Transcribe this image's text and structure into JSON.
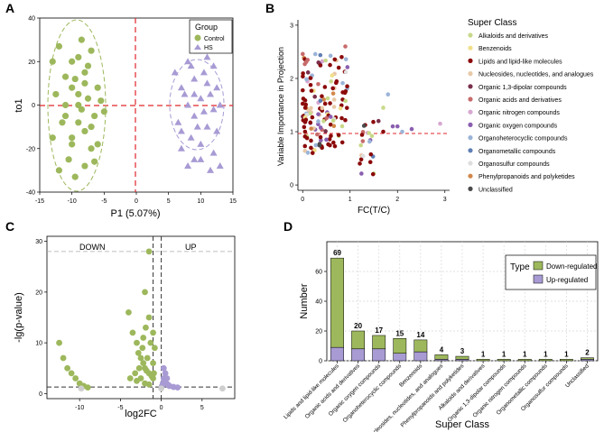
{
  "colors": {
    "green": "#9db85c",
    "purple": "#a89bd4",
    "red_line": "#e0262b",
    "dark_red": "#8b0000",
    "grid": "#d9d9d9"
  },
  "chart_data": [
    {
      "panel": "A",
      "type": "scatter",
      "title": "",
      "xlabel": "P1 (5.07%)",
      "ylabel": "to1",
      "xlim": [
        -15,
        15
      ],
      "ylim": [
        -40,
        40
      ],
      "xticks": [
        -15,
        -10,
        -5,
        0,
        5,
        10,
        15
      ],
      "yticks": [
        -40,
        -20,
        0,
        20,
        40
      ],
      "legend": {
        "title": "Group",
        "entries": [
          "Control",
          "HS"
        ],
        "placement": "top-right"
      },
      "series": [
        {
          "name": "Control",
          "points": [
            [
              -13,
              20
            ],
            [
              -12,
              27
            ],
            [
              -12.5,
              5
            ],
            [
              -11,
              13
            ],
            [
              -11,
              -5
            ],
            [
              -10,
              8
            ],
            [
              -10,
              -15
            ],
            [
              -9,
              22
            ],
            [
              -9,
              0
            ],
            [
              -8.5,
              30
            ],
            [
              -8,
              -12
            ],
            [
              -8,
              10
            ],
            [
              -7.5,
              3
            ],
            [
              -7,
              -20
            ],
            [
              -7,
              25
            ],
            [
              -10.5,
              -25
            ],
            [
              -9.5,
              -33
            ],
            [
              -11.5,
              -8
            ],
            [
              -12,
              -30
            ],
            [
              -6.5,
              -5
            ],
            [
              -6,
              8
            ],
            [
              -6,
              -18
            ],
            [
              -5.5,
              2
            ],
            [
              -8,
              15
            ],
            [
              -9,
              -8
            ],
            [
              -10,
              20
            ],
            [
              -11,
              0
            ],
            [
              -7,
              -10
            ],
            [
              -8,
              -28
            ],
            [
              -5,
              -3
            ],
            [
              -13,
              -15
            ],
            [
              -9,
              5
            ],
            [
              -7.5,
              18
            ],
            [
              -6.5,
              -26
            ],
            [
              -10,
              -18
            ],
            [
              -8.5,
              -2
            ],
            [
              -9.5,
              12
            ]
          ]
        },
        {
          "name": "HS",
          "points": [
            [
              6,
              15
            ],
            [
              6.5,
              -8
            ],
            [
              7,
              8
            ],
            [
              7,
              -20
            ],
            [
              8,
              20
            ],
            [
              8,
              0
            ],
            [
              8.5,
              -15
            ],
            [
              9,
              12
            ],
            [
              9,
              -5
            ],
            [
              9.5,
              25
            ],
            [
              10,
              3
            ],
            [
              10,
              -18
            ],
            [
              10.5,
              15
            ],
            [
              11,
              -10
            ],
            [
              11,
              22
            ],
            [
              11.5,
              5
            ],
            [
              12,
              -2
            ],
            [
              12,
              18
            ],
            [
              12.5,
              -12
            ],
            [
              13,
              0
            ],
            [
              9,
              -25
            ],
            [
              10,
              28
            ],
            [
              8,
              -28
            ],
            [
              11.5,
              -30
            ],
            [
              13,
              -28
            ],
            [
              7.5,
              5
            ],
            [
              9.5,
              -10
            ],
            [
              10.5,
              -3
            ],
            [
              11,
              10
            ],
            [
              12.5,
              8
            ],
            [
              8.5,
              18
            ],
            [
              7,
              -12
            ],
            [
              10,
              -25
            ],
            [
              12,
              -22
            ],
            [
              9,
              5
            ]
          ]
        }
      ]
    },
    {
      "panel": "B",
      "type": "scatter",
      "title": "",
      "xlabel": "FC(T/C)",
      "ylabel": "Variable Importance in Projection",
      "xlim": [
        0,
        3
      ],
      "ylim": [
        0,
        3
      ],
      "xticks": [
        0,
        1,
        2,
        3
      ],
      "yticks": [
        0,
        1,
        2,
        3
      ],
      "legend_title": "Super Class",
      "categories": [
        "Alkaloids and derivatives",
        "Benzenoids",
        "Lipids and lipid-like molecules",
        "Nucleosides, nucleotides, and analogues",
        "Organic 1,3-dipolar compounds",
        "Organic acids and derivatives",
        "Organic nitrogen compounds",
        "Organic oxygen compounds",
        "Organoheterocyclic compounds",
        "Organometallic compounds",
        "Organosulfur compounds",
        "Phenylpropanoids and polyketides",
        "Unclassified"
      ],
      "category_colors": [
        "#c8d98a",
        "#f0e08a",
        "#8b0a0a",
        "#e8c9a8",
        "#7a2f4a",
        "#c86b6b",
        "#d7a8d0",
        "#8a5fb0",
        "#9bb4d8",
        "#5f7fb5",
        "#dedede",
        "#d2874a",
        "#4a4a4a"
      ]
    },
    {
      "panel": "C",
      "type": "scatter",
      "title": "",
      "xlabel": "log2FC",
      "ylabel": "-lg(p-value)",
      "xlim": [
        -14,
        9
      ],
      "ylim": [
        0,
        30
      ],
      "xticks": [
        -10,
        -5,
        0,
        5
      ],
      "yticks": [
        0,
        10,
        20,
        30
      ],
      "annotations": [
        "DOWN",
        "UP"
      ],
      "series": [
        {
          "name": "Down",
          "points": [
            [
              -12.5,
              10
            ],
            [
              -12,
              7
            ],
            [
              -11.5,
              5
            ],
            [
              -11,
              4
            ],
            [
              -10.5,
              3
            ],
            [
              -10,
              2
            ],
            [
              -9.5,
              1.5
            ],
            [
              -9,
              1.2
            ],
            [
              -4,
              16
            ],
            [
              -3.5,
              12
            ],
            [
              -3,
              10
            ],
            [
              -2.8,
              8
            ],
            [
              -2.5,
              7
            ],
            [
              -2.2,
              6
            ],
            [
              -2,
              5
            ],
            [
              -1.8,
              4.5
            ],
            [
              -1.5,
              4
            ],
            [
              -1.2,
              3.5
            ],
            [
              -1,
              3
            ],
            [
              -2,
              20
            ],
            [
              -1.5,
              15
            ],
            [
              -1,
              12
            ],
            [
              -0.8,
              9
            ],
            [
              -1.5,
              28
            ],
            [
              -2.5,
              3
            ],
            [
              -3,
              2.5
            ],
            [
              -2,
              2
            ],
            [
              -1.5,
              1.8
            ],
            [
              -3.2,
              4
            ],
            [
              -2.7,
              5
            ],
            [
              -2.3,
              9
            ],
            [
              -1.7,
              7
            ],
            [
              -1.3,
              10
            ],
            [
              -1,
              6
            ],
            [
              -0.9,
              4
            ],
            [
              -3.8,
              3
            ],
            [
              -2.2,
              11
            ],
            [
              -1.9,
              13
            ]
          ]
        },
        {
          "name": "Up",
          "points": [
            [
              0.1,
              1.5
            ],
            [
              0.2,
              2
            ],
            [
              0.3,
              3
            ],
            [
              0.4,
              2.5
            ],
            [
              0.6,
              2
            ],
            [
              0.8,
              1.8
            ],
            [
              1,
              1.5
            ],
            [
              1.5,
              1.3
            ],
            [
              2,
              1.2
            ],
            [
              0.5,
              4
            ],
            [
              0.3,
              5
            ],
            [
              0.7,
              3
            ]
          ]
        },
        {
          "name": "NS",
          "points": [
            [
              7.5,
              1
            ],
            [
              -9.8,
              1
            ],
            [
              0,
              1
            ]
          ]
        }
      ],
      "hlines": [
        28,
        1.3
      ],
      "vlines": [
        -1,
        0
      ]
    },
    {
      "panel": "D",
      "type": "bar",
      "title": "",
      "xlabel": "Super Class",
      "ylabel": "Number",
      "ylim": [
        0,
        80
      ],
      "yticks": [
        0,
        20,
        40,
        60
      ],
      "legend": {
        "title": "Type",
        "entries": [
          "Down-regulated",
          "Up-regulated"
        ],
        "placement": "top-right"
      },
      "categories": [
        "Lipids and lipid-like molecules",
        "Organic acids and derivatives",
        "Organic oxygen compounds",
        "Organoheterocyclic compounds",
        "Benzenoids",
        "Nucleosides, nucleotides, and analogues",
        "Phenylpropanoids and polyketides",
        "Alkaloids and derivatives",
        "Organic 1,3-dipolar compounds",
        "Organic nitrogen compounds",
        "Organometallic compounds",
        "Organosulfur compounds",
        "Unclassified"
      ],
      "totals": [
        "69",
        "20",
        "17",
        "15",
        "14",
        "4",
        "3",
        "1",
        "1",
        "1",
        "1",
        "1",
        "2"
      ],
      "series": [
        {
          "name": "Down-regulated",
          "values": [
            60,
            12,
            9,
            10,
            8,
            3,
            2,
            1,
            1,
            1,
            1,
            1,
            1
          ]
        },
        {
          "name": "Up-regulated",
          "values": [
            9,
            8,
            8,
            5,
            6,
            1,
            1,
            0,
            0,
            0,
            0,
            0,
            1
          ]
        }
      ]
    }
  ],
  "panel_labels": [
    "A",
    "B",
    "C",
    "D"
  ]
}
